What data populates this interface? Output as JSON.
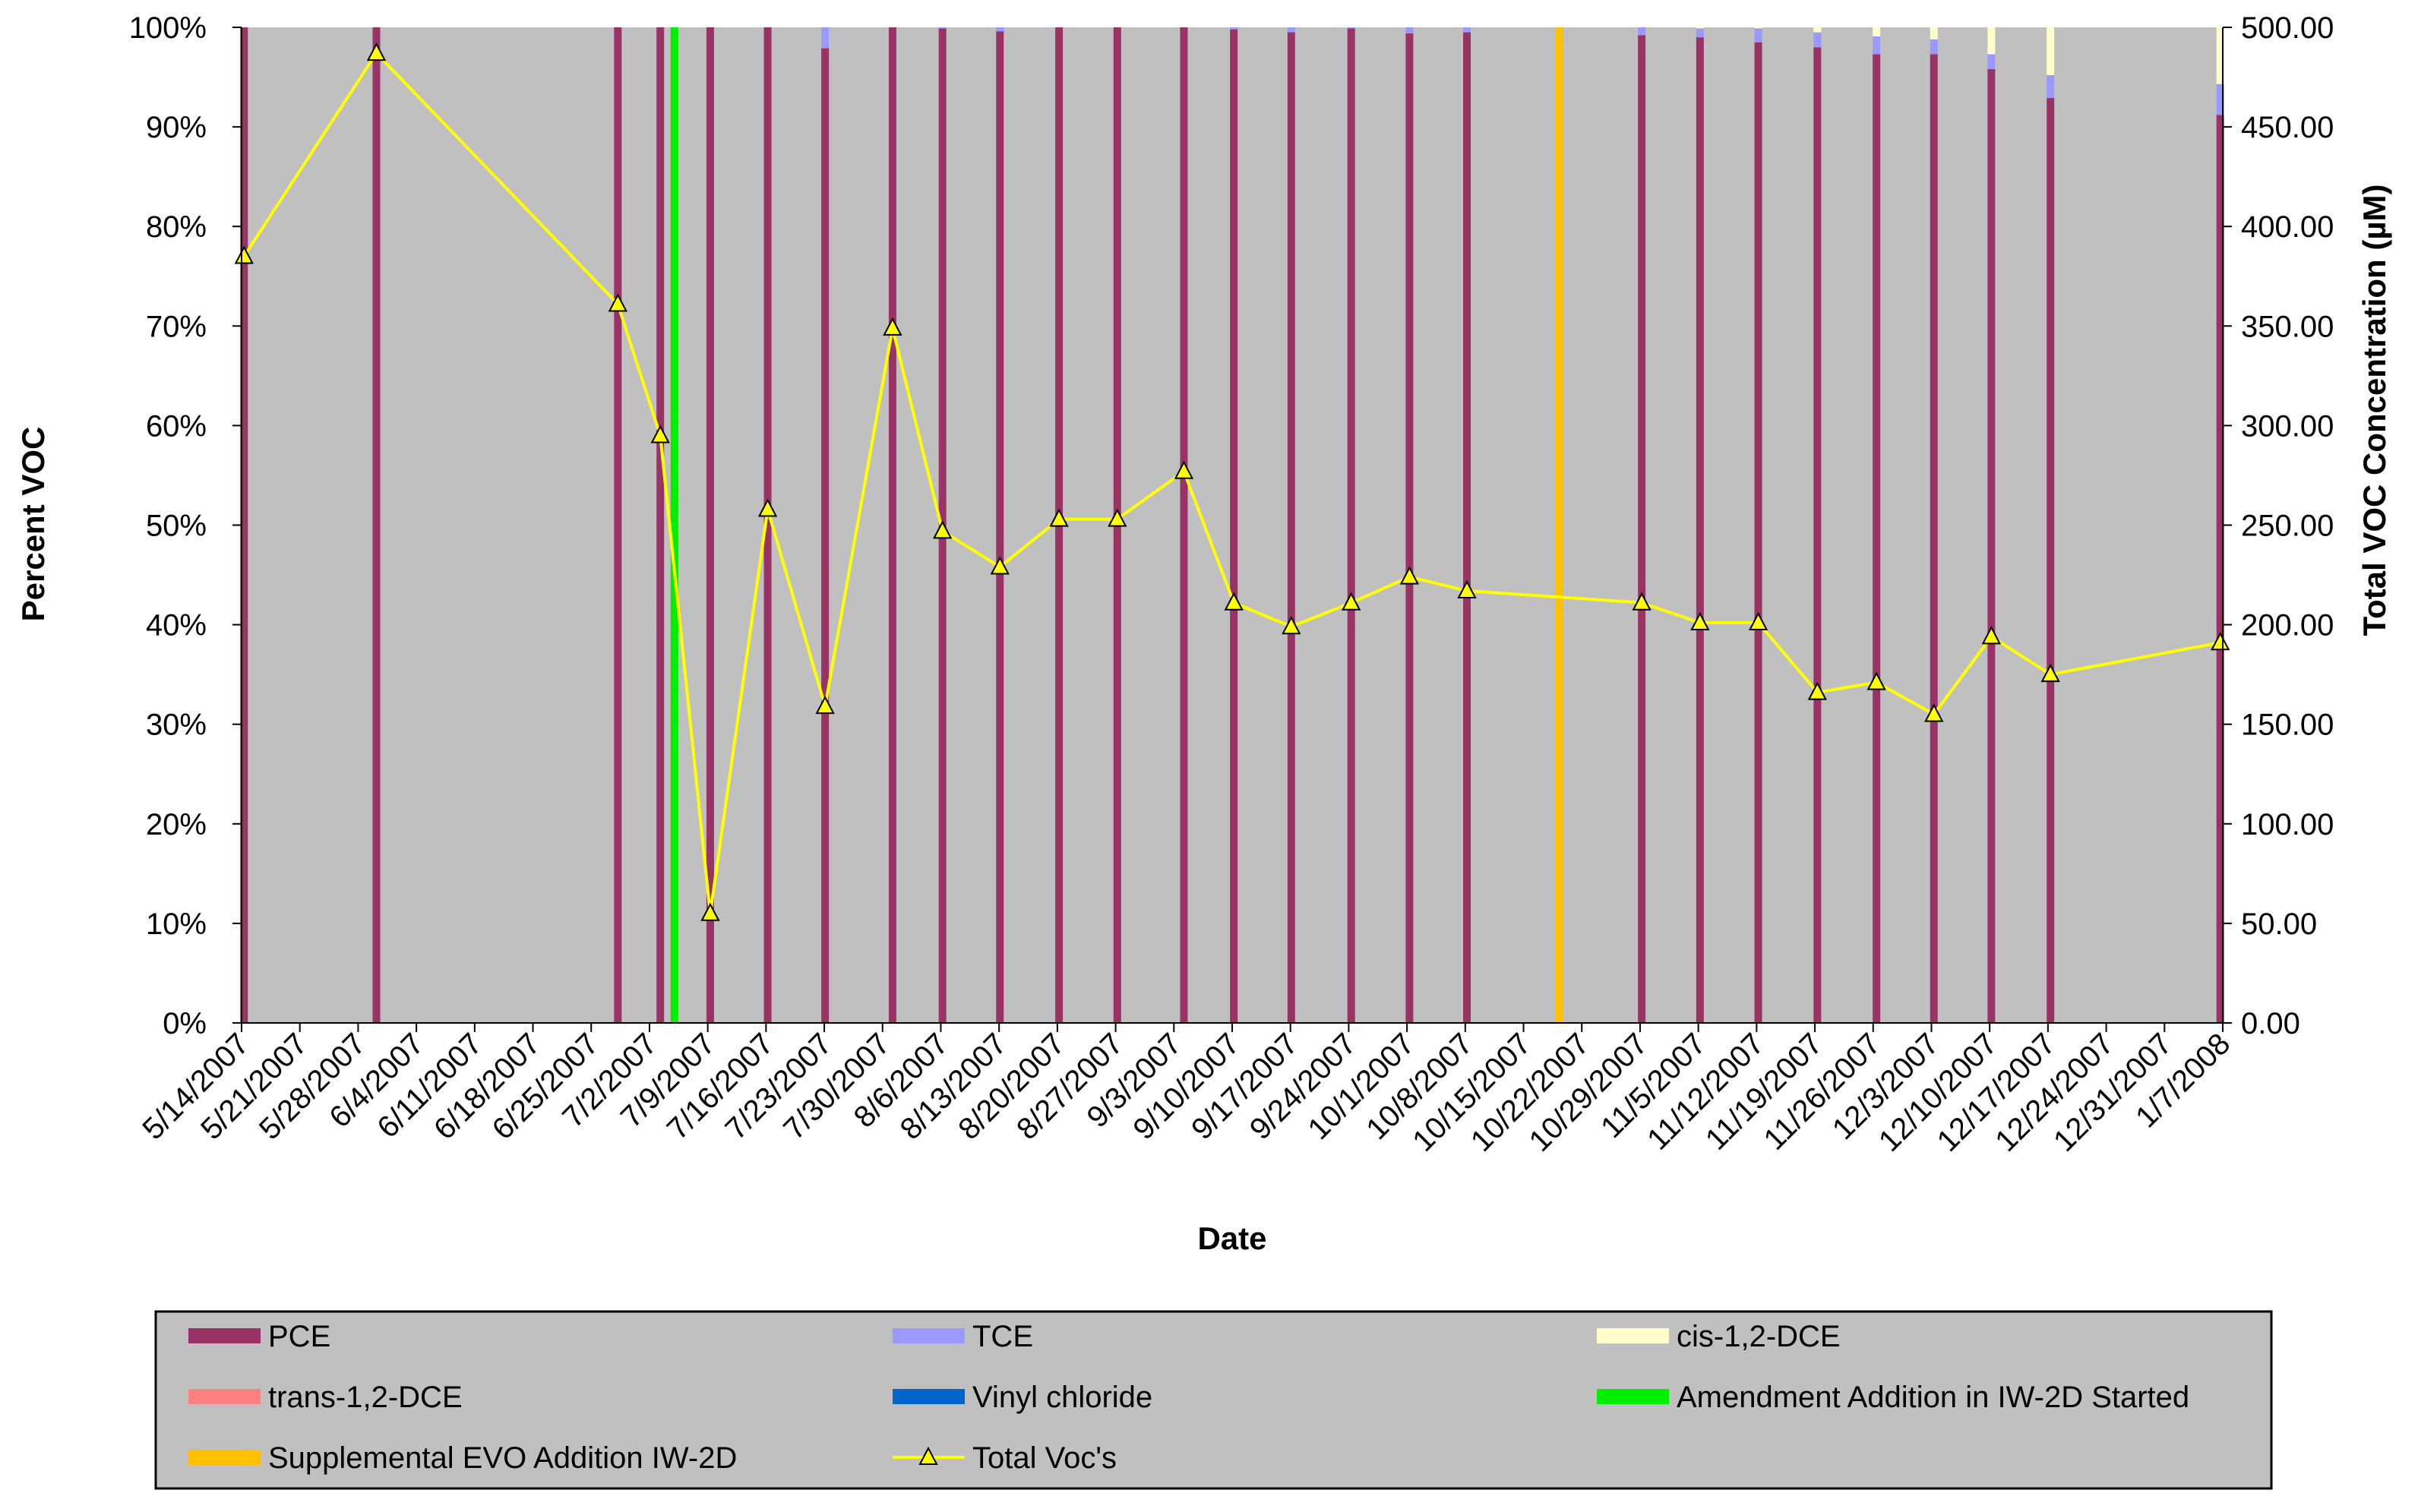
{
  "chart_data": {
    "type": "bar",
    "xlabel": "Date",
    "ylabel": "Percent VOC",
    "y2label": "Total VOC Concentration (µM)",
    "ylim": [
      0,
      100
    ],
    "y2lim": [
      0,
      500
    ],
    "yticks": [
      "0%",
      "10%",
      "20%",
      "30%",
      "40%",
      "50%",
      "60%",
      "70%",
      "80%",
      "90%",
      "100%"
    ],
    "y2ticks": [
      "0.00",
      "50.00",
      "100.00",
      "150.00",
      "200.00",
      "250.00",
      "300.00",
      "350.00",
      "400.00",
      "450.00",
      "500.00"
    ],
    "xrange_days": [
      0,
      238
    ],
    "xticks": [
      {
        "label": "5/14/2007",
        "day": 0
      },
      {
        "label": "5/21/2007",
        "day": 7
      },
      {
        "label": "5/28/2007",
        "day": 14
      },
      {
        "label": "6/4/2007",
        "day": 21
      },
      {
        "label": "6/11/2007",
        "day": 28
      },
      {
        "label": "6/18/2007",
        "day": 35
      },
      {
        "label": "6/25/2007",
        "day": 42
      },
      {
        "label": "7/2/2007",
        "day": 49
      },
      {
        "label": "7/9/2007",
        "day": 56
      },
      {
        "label": "7/16/2007",
        "day": 63
      },
      {
        "label": "7/23/2007",
        "day": 70
      },
      {
        "label": "7/30/2007",
        "day": 77
      },
      {
        "label": "8/6/2007",
        "day": 84
      },
      {
        "label": "8/13/2007",
        "day": 91
      },
      {
        "label": "8/20/2007",
        "day": 98
      },
      {
        "label": "8/27/2007",
        "day": 105
      },
      {
        "label": "9/3/2007",
        "day": 112
      },
      {
        "label": "9/10/2007",
        "day": 119
      },
      {
        "label": "9/17/2007",
        "day": 126
      },
      {
        "label": "9/24/2007",
        "day": 133
      },
      {
        "label": "10/1/2007",
        "day": 140
      },
      {
        "label": "10/8/2007",
        "day": 147
      },
      {
        "label": "10/15/2007",
        "day": 154
      },
      {
        "label": "10/22/2007",
        "day": 161
      },
      {
        "label": "10/29/2007",
        "day": 168
      },
      {
        "label": "11/5/2007",
        "day": 175
      },
      {
        "label": "11/12/2007",
        "day": 182
      },
      {
        "label": "11/19/2007",
        "day": 189
      },
      {
        "label": "11/26/2007",
        "day": 196
      },
      {
        "label": "12/3/2007",
        "day": 203
      },
      {
        "label": "12/10/2007",
        "day": 210
      },
      {
        "label": "12/17/2007",
        "day": 217
      },
      {
        "label": "12/24/2007",
        "day": 224
      },
      {
        "label": "12/31/2007",
        "day": 231
      },
      {
        "label": "1/7/2008",
        "day": 238
      }
    ],
    "samples": [
      {
        "day": 0.3,
        "pce": 100,
        "tce": 0,
        "dce": 0,
        "total": 385
      },
      {
        "day": 16.2,
        "pce": 100,
        "tce": 0,
        "dce": 0,
        "total": 487
      },
      {
        "day": 45.2,
        "pce": 100,
        "tce": 0,
        "dce": 0,
        "total": 361
      },
      {
        "day": 50.3,
        "pce": 100,
        "tce": 0,
        "dce": 0,
        "total": 295
      },
      {
        "day": 56.3,
        "pce": 100,
        "tce": 0,
        "dce": 0,
        "total": 55
      },
      {
        "day": 63.2,
        "pce": 100,
        "tce": 0,
        "dce": 0,
        "total": 258
      },
      {
        "day": 70.1,
        "pce": 97.9,
        "tce": 2.1,
        "dce": 0,
        "total": 159
      },
      {
        "day": 78.2,
        "pce": 100,
        "tce": 0,
        "dce": 0,
        "total": 349
      },
      {
        "day": 84.2,
        "pce": 99.9,
        "tce": 0.1,
        "dce": 0,
        "total": 247
      },
      {
        "day": 91.1,
        "pce": 99.6,
        "tce": 0.4,
        "dce": 0,
        "total": 229
      },
      {
        "day": 98.2,
        "pce": 100,
        "tce": 0,
        "dce": 0,
        "total": 253
      },
      {
        "day": 105.2,
        "pce": 100,
        "tce": 0,
        "dce": 0,
        "total": 253
      },
      {
        "day": 113.2,
        "pce": 100,
        "tce": 0,
        "dce": 0,
        "total": 277
      },
      {
        "day": 119.2,
        "pce": 99.8,
        "tce": 0.2,
        "dce": 0,
        "total": 211
      },
      {
        "day": 126.1,
        "pce": 99.5,
        "tce": 0.5,
        "dce": 0,
        "total": 199
      },
      {
        "day": 133.3,
        "pce": 99.9,
        "tce": 0.1,
        "dce": 0,
        "total": 211
      },
      {
        "day": 140.3,
        "pce": 99.4,
        "tce": 0.6,
        "dce": 0,
        "total": 224
      },
      {
        "day": 147.2,
        "pce": 99.5,
        "tce": 0.5,
        "dce": 0,
        "total": 217
      },
      {
        "day": 168.2,
        "pce": 99.2,
        "tce": 0.8,
        "dce": 0,
        "total": 211
      },
      {
        "day": 175.2,
        "pce": 99.0,
        "tce": 0.9,
        "dce": 0.1,
        "total": 201
      },
      {
        "day": 182.2,
        "pce": 98.5,
        "tce": 1.4,
        "dce": 0.1,
        "total": 201
      },
      {
        "day": 189.3,
        "pce": 98.0,
        "tce": 1.5,
        "dce": 0.5,
        "total": 166
      },
      {
        "day": 196.4,
        "pce": 97.3,
        "tce": 1.8,
        "dce": 0.9,
        "total": 171
      },
      {
        "day": 203.3,
        "pce": 97.3,
        "tce": 1.5,
        "dce": 1.2,
        "total": 155
      },
      {
        "day": 210.2,
        "pce": 95.8,
        "tce": 1.5,
        "dce": 2.7,
        "total": 194
      },
      {
        "day": 217.3,
        "pce": 92.9,
        "tce": 2.3,
        "dce": 4.8,
        "total": 175
      },
      {
        "day": 237.7,
        "pce": 91.2,
        "tce": 3.1,
        "dce": 5.7,
        "total": 191
      }
    ],
    "event_lines": [
      {
        "name": "Amendment Addition in IW-2D Started",
        "day": 52.0,
        "color": "#00ee00"
      },
      {
        "name": "Supplemental EVO Addition IW-2D",
        "day": 158.3,
        "color": "#ffc000"
      }
    ],
    "legend": {
      "placement": "bottom",
      "entries": [
        {
          "label": "PCE",
          "color": "#993366",
          "kind": "box"
        },
        {
          "label": "TCE",
          "color": "#9999ff",
          "kind": "box"
        },
        {
          "label": "cis-1,2-DCE",
          "color": "#ffffcc",
          "kind": "box"
        },
        {
          "label": "trans-1,2-DCE",
          "color": "#ff8080",
          "kind": "box"
        },
        {
          "label": "Vinyl chloride",
          "color": "#0066cc",
          "kind": "box"
        },
        {
          "label": "Amendment Addition in IW-2D Started",
          "color": "#00ee00",
          "kind": "box"
        },
        {
          "label": "Supplemental EVO Addition IW-2D",
          "color": "#ffc000",
          "kind": "box"
        },
        {
          "label": "Total Voc's",
          "color": "#ffff00",
          "kind": "line"
        }
      ]
    },
    "colors": {
      "plot_bg": "#c0c0c0",
      "pce": "#993366",
      "tce": "#9999ff",
      "dce": "#ffffcc",
      "total_line": "#ffff00"
    }
  }
}
